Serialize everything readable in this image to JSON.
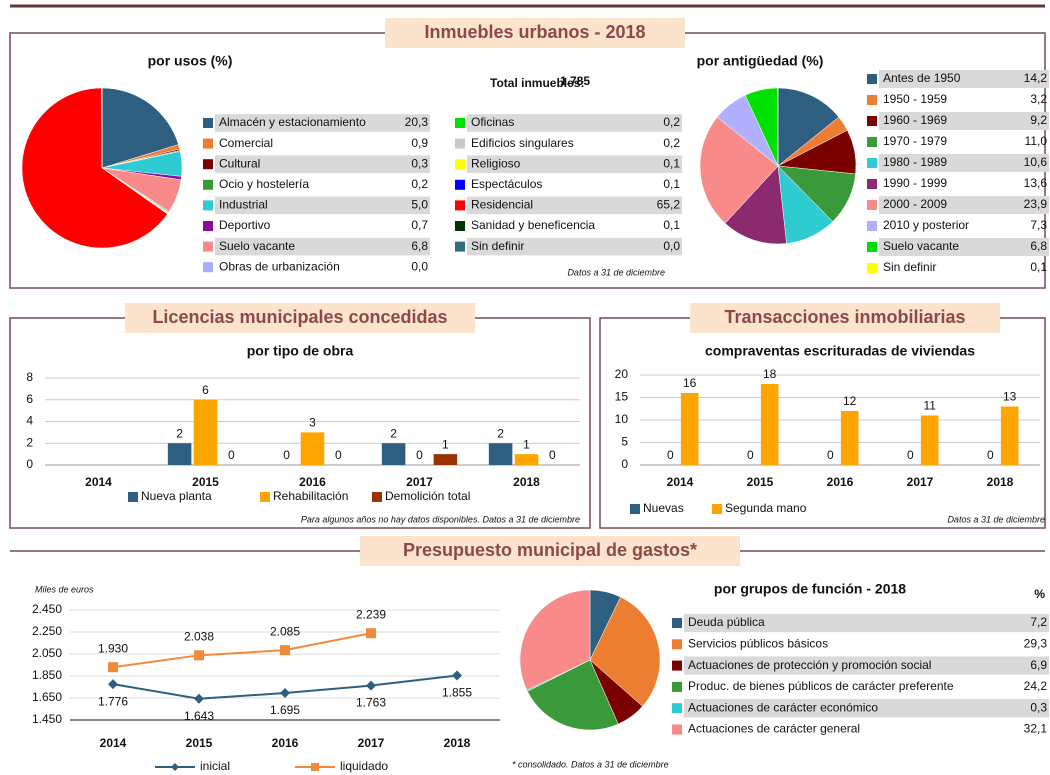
{
  "sections": [
    "Inmuebles urbanos - 2018",
    "Licencias municipales concedidas",
    "Transacciones inmobiliarias",
    "Presupuesto municipal de gastos*"
  ],
  "chart_data": [
    {
      "type": "pie",
      "title": "por usos (%)",
      "total": {
        "label": "Total inmuebles:",
        "value": 1785,
        "value_label": "1.785"
      },
      "note": "Datos a 31 de diciembre",
      "categories": [
        "Almacén y estacionamiento",
        "Comercial",
        "Cultural",
        "Ocio y hostelería",
        "Industrial",
        "Deportivo",
        "Suelo vacante",
        "Obras de urbanización",
        "Oficinas",
        "Edificios singulares",
        "Religioso",
        "Espectáculos",
        "Residencial",
        "Sanidad y beneficencia",
        "Sin definir"
      ],
      "values": [
        20.3,
        0.9,
        0.3,
        0.2,
        5.0,
        0.7,
        6.8,
        0.0,
        0.2,
        0.2,
        0.1,
        0.1,
        65.2,
        0.1,
        0.0
      ],
      "value_labels": [
        "20,3",
        "0,9",
        "0,3",
        "0,2",
        "5,0",
        "0,7",
        "6,8",
        "0,0",
        "0,2",
        "0,2",
        "0,1",
        "0,1",
        "65,2",
        "0,1",
        "0,0"
      ],
      "colors": [
        "#2f5f80",
        "#ed7d31",
        "#7b0000",
        "#3a9a3a",
        "#2ecbd0",
        "#8b0ea0",
        "#f88a8a",
        "#aaaaff",
        "#00e000",
        "#c8c8c8",
        "#ffff00",
        "#0000ff",
        "#ff0000",
        "#003300",
        "#2f6f7a"
      ]
    },
    {
      "type": "pie",
      "title": "por antigüedad (%)",
      "categories": [
        "Antes de 1950",
        "1950 - 1959",
        "1960 - 1969",
        "1970 - 1979",
        "1980 - 1989",
        "1990 - 1999",
        "2000 - 2009",
        "2010 y posterior",
        "Suelo vacante",
        "Sin definir"
      ],
      "values": [
        14.2,
        3.2,
        9.2,
        11.0,
        10.6,
        13.6,
        23.9,
        7.3,
        6.8,
        0.1
      ],
      "value_labels": [
        "14,2",
        "3,2",
        "9,2",
        "11,0",
        "10,6",
        "13,6",
        "23,9",
        "7,3",
        "6,8",
        "0,1"
      ],
      "colors": [
        "#2f5f80",
        "#ed7d31",
        "#7b0000",
        "#3a9a3a",
        "#2ecbd0",
        "#8b2a6f",
        "#f88a8a",
        "#b0b0ff",
        "#00e000",
        "#ffff00"
      ]
    },
    {
      "type": "bar",
      "title": "por tipo de obra",
      "note": "Para algunos años no hay datos disponibles. Datos a 31 de diciembre",
      "categories": [
        "2014",
        "2015",
        "2016",
        "2017",
        "2018"
      ],
      "series": [
        {
          "name": "Nueva planta",
          "color": "#2f5f80",
          "values": [
            null,
            2,
            0,
            2,
            2
          ]
        },
        {
          "name": "Rehabilitación",
          "color": "#ffa500",
          "values": [
            null,
            6,
            3,
            0,
            1
          ]
        },
        {
          "name": "Demolición total",
          "color": "#993300",
          "values": [
            null,
            0,
            0,
            1,
            0
          ]
        }
      ],
      "ylim": [
        0,
        8
      ],
      "yticks": [
        0,
        2,
        4,
        6,
        8
      ],
      "grid": true
    },
    {
      "type": "bar",
      "title": "compraventas escrituradas de viviendas",
      "note": "Datos a 31 de diciembre",
      "categories": [
        "2014",
        "2015",
        "2016",
        "2017",
        "2018"
      ],
      "series": [
        {
          "name": "Nuevas",
          "color": "#2f5f80",
          "values": [
            0,
            0,
            0,
            0,
            0
          ]
        },
        {
          "name": "Segunda mano",
          "color": "#ffa500",
          "values": [
            16,
            18,
            12,
            11,
            13
          ]
        }
      ],
      "ylim": [
        0,
        20
      ],
      "yticks": [
        0,
        5,
        10,
        15,
        20
      ],
      "grid": true
    },
    {
      "type": "line",
      "y_label": "Miles de euros",
      "categories": [
        "2014",
        "2015",
        "2016",
        "2017",
        "2018"
      ],
      "series": [
        {
          "name": "inicial",
          "color": "#2f5f80",
          "values": [
            1776,
            1643,
            1695,
            1763,
            1855
          ],
          "value_labels": [
            "1.776",
            "1.643",
            "1.695",
            "1.763",
            "1.855"
          ]
        },
        {
          "name": "liquidado",
          "color": "#f08a3c",
          "values": [
            1930,
            2038,
            2085,
            2239,
            null
          ],
          "value_labels": [
            "1.930",
            "2.038",
            "2.085",
            "2.239",
            null
          ]
        }
      ],
      "ylim": [
        1450,
        2450
      ],
      "yticks": [
        {
          "value": 1450,
          "label": "1.450"
        },
        {
          "value": 1650,
          "label": "1.650"
        },
        {
          "value": 1850,
          "label": "1.850"
        },
        {
          "value": 2050,
          "label": "2.050"
        },
        {
          "value": 2250,
          "label": "2.250"
        },
        {
          "value": 2450,
          "label": "2.450"
        }
      ],
      "grid": true
    },
    {
      "type": "pie",
      "title": "por grupos de función - 2018",
      "value_header": "%",
      "note": "* consolidado. Datos a 31 de diciembre",
      "categories": [
        "Deuda pública",
        "Servicios públicos básicos",
        "Actuaciones de protección y promoción social",
        "Produc. de bienes públicos de carácter preferente",
        "Actuaciones de carácter económico",
        "Actuaciones de carácter general"
      ],
      "values": [
        7.2,
        29.3,
        6.9,
        24.2,
        0.3,
        32.1
      ],
      "value_labels": [
        "7,2",
        "29,3",
        "6,9",
        "24,2",
        "0,3",
        "32,1"
      ],
      "colors": [
        "#2f5f80",
        "#ed7d31",
        "#7b0000",
        "#3a9a3a",
        "#2ecbd0",
        "#f88a8a"
      ]
    }
  ]
}
